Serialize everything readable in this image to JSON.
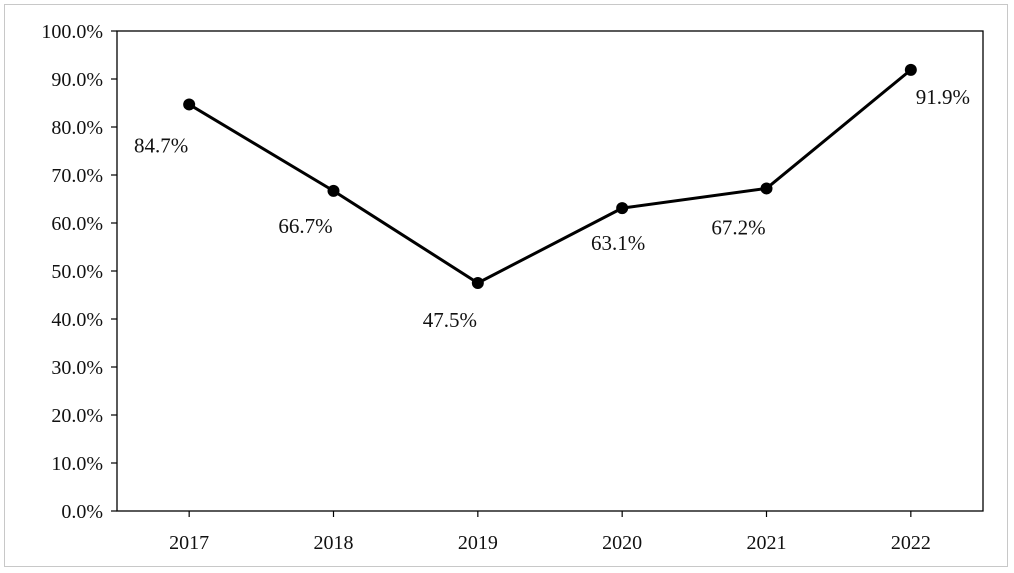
{
  "chart_data": {
    "type": "line",
    "categories": [
      "2017",
      "2018",
      "2019",
      "2020",
      "2021",
      "2022"
    ],
    "series": [
      {
        "values": [
          84.7,
          66.7,
          47.5,
          63.1,
          67.2,
          91.9
        ],
        "data_labels": [
          "84.7%",
          "66.7%",
          "47.5%",
          "63.1%",
          "67.2%",
          "91.9%"
        ]
      }
    ],
    "ylim": [
      0,
      100
    ],
    "ytick_labels": [
      "0.0%",
      "10.0%",
      "20.0%",
      "30.0%",
      "40.0%",
      "50.0%",
      "60.0%",
      "70.0%",
      "80.0%",
      "90.0%",
      "100.0%"
    ],
    "title": "",
    "xlabel": "",
    "ylabel": "",
    "grid": false,
    "legend": "none",
    "line_color": "#000000",
    "marker": "filled-circle"
  }
}
